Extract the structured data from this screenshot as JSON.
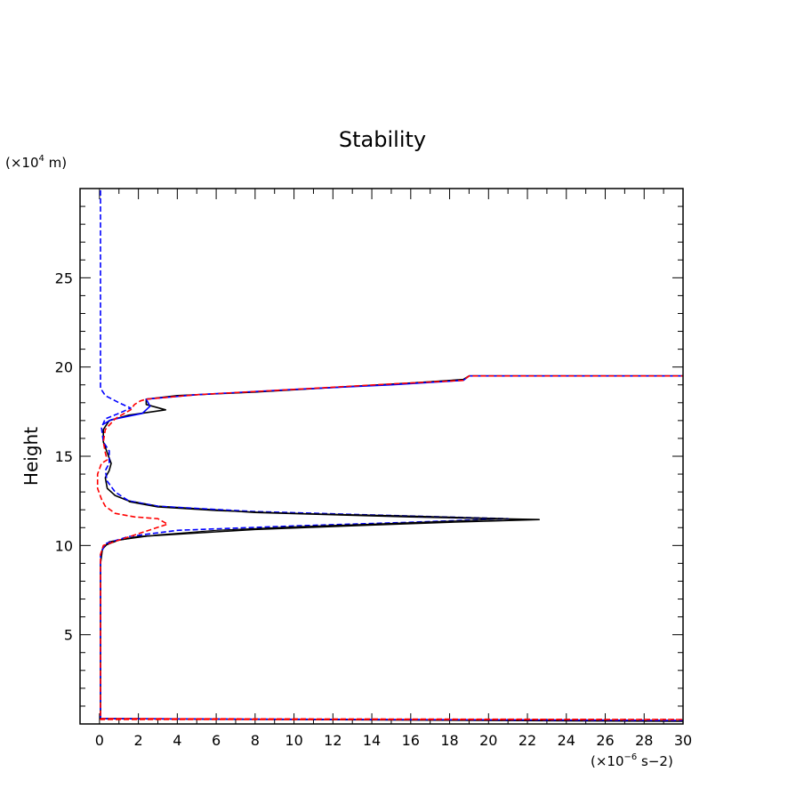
{
  "chart_data": {
    "type": "line",
    "title": "Stability",
    "xlabel": "",
    "ylabel": "Height",
    "x_unit": {
      "prefix": "(×10",
      "exp": "−6",
      "suffix": " s−2)"
    },
    "y_unit": {
      "prefix": "(×10",
      "exp": "4",
      "suffix": " m)"
    },
    "xlim": [
      -1,
      30
    ],
    "ylim": [
      0,
      30
    ],
    "xticks": [
      0,
      2,
      4,
      6,
      8,
      10,
      12,
      14,
      16,
      18,
      20,
      22,
      24,
      26,
      28,
      30
    ],
    "yticks": [
      5,
      10,
      15,
      20,
      25
    ],
    "grid": false,
    "colors": {
      "black": "#000000",
      "blue": "#0000ff",
      "red": "#ff0000"
    },
    "series": [
      {
        "color": "#000000",
        "style": "solid",
        "points": [
          [
            0,
            0.3
          ],
          [
            30,
            0.15
          ],
          [
            0.05,
            0.3
          ],
          [
            0.05,
            9.0
          ],
          [
            0.15,
            9.8
          ],
          [
            0.5,
            10.2
          ],
          [
            2,
            10.5
          ],
          [
            8,
            10.9
          ],
          [
            14,
            11.15
          ],
          [
            18,
            11.3
          ],
          [
            22.6,
            11.45
          ],
          [
            16,
            11.6
          ],
          [
            8,
            11.85
          ],
          [
            3,
            12.2
          ],
          [
            1.5,
            12.5
          ],
          [
            0.8,
            12.8
          ],
          [
            0.4,
            13.2
          ],
          [
            0.3,
            13.8
          ],
          [
            0.5,
            14.2
          ],
          [
            0.6,
            14.6
          ],
          [
            0.4,
            15.2
          ],
          [
            0.2,
            15.8
          ],
          [
            0.2,
            16.5
          ],
          [
            0.5,
            17.0
          ],
          [
            1.5,
            17.3
          ],
          [
            3.4,
            17.6
          ],
          [
            2.4,
            17.9
          ],
          [
            2.4,
            18.2
          ],
          [
            4,
            18.4
          ],
          [
            8,
            18.6
          ],
          [
            12,
            18.85
          ],
          [
            16,
            19.1
          ],
          [
            18.7,
            19.3
          ],
          [
            19,
            19.5
          ],
          [
            30,
            19.5
          ]
        ]
      },
      {
        "color": "#0000ff",
        "style": "dashed",
        "points": [
          [
            0.05,
            29.9
          ],
          [
            0.05,
            18.8
          ],
          [
            0.3,
            18.4
          ],
          [
            1.0,
            18.0
          ],
          [
            1.6,
            17.7
          ],
          [
            1.0,
            17.4
          ],
          [
            0.3,
            17.1
          ],
          [
            0.1,
            16.6
          ],
          [
            0.2,
            15.8
          ],
          [
            0.5,
            15.3
          ],
          [
            0.5,
            14.6
          ],
          [
            0.3,
            14.2
          ],
          [
            0.4,
            13.6
          ],
          [
            0.8,
            13.0
          ],
          [
            1.5,
            12.5
          ],
          [
            3,
            12.2
          ],
          [
            8,
            11.9
          ],
          [
            16,
            11.65
          ],
          [
            21,
            11.5
          ],
          [
            16,
            11.3
          ],
          [
            10,
            11.1
          ],
          [
            4,
            10.85
          ],
          [
            1.5,
            10.5
          ],
          [
            0.3,
            10.1
          ],
          [
            0.05,
            9.5
          ],
          [
            0.05,
            0.3
          ],
          [
            30,
            0.2
          ]
        ]
      },
      {
        "color": "#000000",
        "style": "solid-thin",
        "points": [
          [
            0.3,
            10.0
          ],
          [
            1,
            10.3
          ],
          [
            3,
            10.6
          ],
          [
            6,
            10.85
          ],
          [
            10,
            11.05
          ],
          [
            14,
            11.2
          ],
          [
            19,
            11.4
          ],
          [
            21,
            11.5
          ],
          [
            16,
            11.65
          ],
          [
            10,
            11.8
          ],
          [
            6,
            11.95
          ],
          [
            3,
            12.15
          ],
          [
            1.5,
            12.45
          ]
        ]
      },
      {
        "color": "#0000ff",
        "style": "solid",
        "points": [
          [
            0.2,
            16.8
          ],
          [
            0.6,
            17.05
          ],
          [
            1.3,
            17.2
          ],
          [
            2.2,
            17.4
          ],
          [
            2.6,
            17.8
          ],
          [
            2.4,
            18.2
          ],
          [
            5,
            18.45
          ],
          [
            10,
            18.75
          ],
          [
            15,
            19.0
          ],
          [
            18.7,
            19.25
          ],
          [
            19,
            19.5
          ],
          [
            30,
            19.5
          ]
        ]
      },
      {
        "color": "#ff0000",
        "style": "dashed",
        "points": [
          [
            0.05,
            0.3
          ],
          [
            30,
            0.25
          ],
          [
            0.05,
            0.25
          ],
          [
            0.05,
            9.5
          ],
          [
            0.2,
            10.0
          ],
          [
            1,
            10.3
          ],
          [
            3.5,
            11.2
          ],
          [
            3,
            11.5
          ],
          [
            1.8,
            11.6
          ],
          [
            0.8,
            11.8
          ],
          [
            0.3,
            12.2
          ],
          [
            0.1,
            12.6
          ],
          [
            -0.1,
            13.2
          ],
          [
            -0.1,
            14.0
          ],
          [
            0.1,
            14.6
          ],
          [
            0.4,
            14.8
          ],
          [
            0.3,
            15.2
          ],
          [
            0.2,
            15.8
          ],
          [
            0.3,
            16.5
          ],
          [
            0.8,
            17.1
          ],
          [
            1.6,
            17.6
          ],
          [
            1.8,
            17.9
          ],
          [
            2.1,
            18.1
          ],
          [
            2.4,
            18.2
          ],
          [
            5,
            18.45
          ],
          [
            10,
            18.75
          ],
          [
            15,
            19.05
          ],
          [
            18.7,
            19.25
          ],
          [
            19,
            19.5
          ],
          [
            30,
            19.5
          ]
        ]
      }
    ]
  }
}
